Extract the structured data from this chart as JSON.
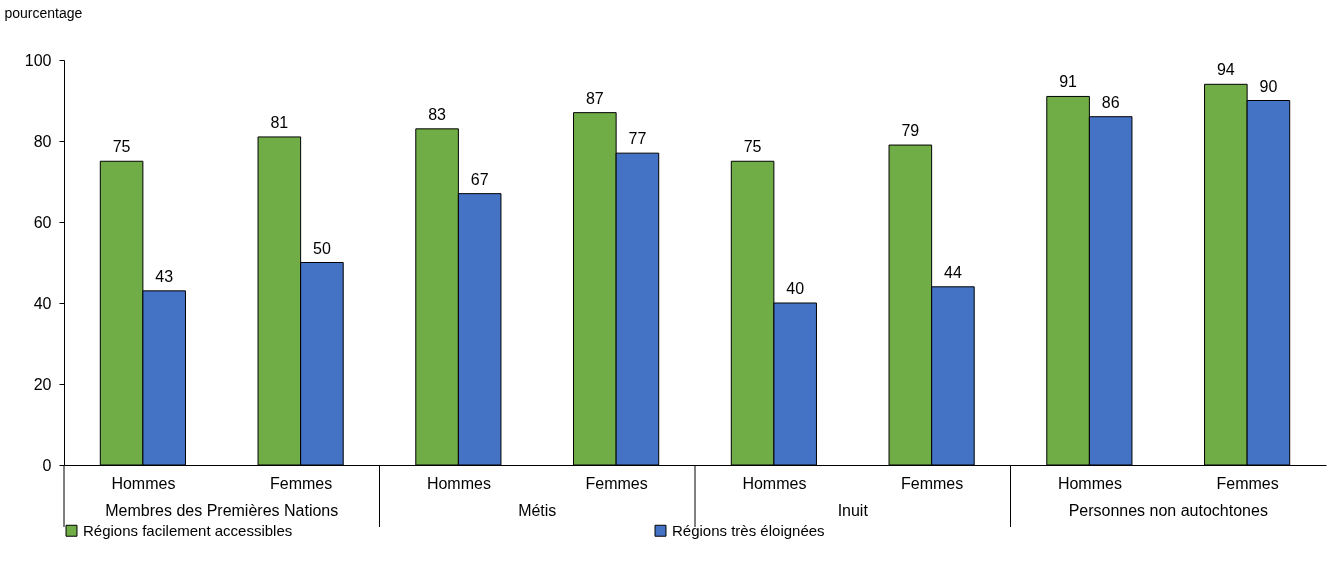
{
  "chart_data": {
    "type": "bar",
    "ylabel": "pourcentage",
    "categories": [
      "Hommes",
      "Femmes",
      "Hommes",
      "Femmes",
      "Hommes",
      "Femmes",
      "Hommes",
      "Femmes"
    ],
    "series": [
      {
        "name": "Régions facilement accessibles",
        "color": "#70ad47",
        "values": [
          75,
          81,
          83,
          87,
          75,
          79,
          91,
          94
        ]
      },
      {
        "name": "Régions très éloignées",
        "color": "#4472c4",
        "values": [
          43,
          50,
          67,
          77,
          40,
          44,
          86,
          90
        ]
      }
    ],
    "ylim": [
      0,
      100
    ],
    "yticks": [
      0,
      20,
      40,
      60,
      80,
      100
    ],
    "grid": false,
    "legend": "bottom",
    "data_labels": true,
    "annotations": [
      "Membres des Premières Nations",
      "Métis",
      "Inuit",
      "Personnes non autochtones"
    ]
  }
}
